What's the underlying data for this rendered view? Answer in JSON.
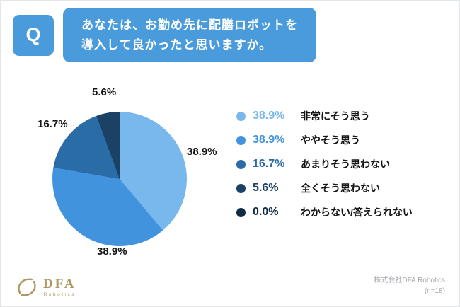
{
  "theme": {
    "accent": "#4A9BDB",
    "text": "#141414",
    "muted": "#A0A6AC",
    "logo_gold": "#AE9660"
  },
  "header": {
    "q_label": "Q",
    "question_line1": "あなたは、お勤め先に配膳ロボットを",
    "question_line2": "導入して良かったと思いますか。"
  },
  "chart_data": {
    "type": "pie",
    "title": "あなたは、お勤め先に配膳ロボットを導入して良かったと思いますか。",
    "labels": [
      "非常にそう思う",
      "ややそう思う",
      "あまりそう思わない",
      "全くそう思わない",
      "わからない/答えられない"
    ],
    "values": [
      38.9,
      38.9,
      16.7,
      5.6,
      0.0
    ],
    "value_labels": [
      "38.9%",
      "38.9%",
      "16.7%",
      "5.6%",
      "0.0%"
    ],
    "colors": [
      "#79B8EC",
      "#4193DE",
      "#2A6CA6",
      "#1B4265",
      "#0E2A44"
    ],
    "start_angle_deg": 0,
    "direction": "clockwise",
    "legend_position": "right",
    "sample_note": "(n=18)"
  },
  "footer": {
    "company": "株式会社DFA Robotics",
    "sample_size": "(n=18)"
  },
  "logo": {
    "text": "DFA",
    "subtext": "Robotics"
  }
}
